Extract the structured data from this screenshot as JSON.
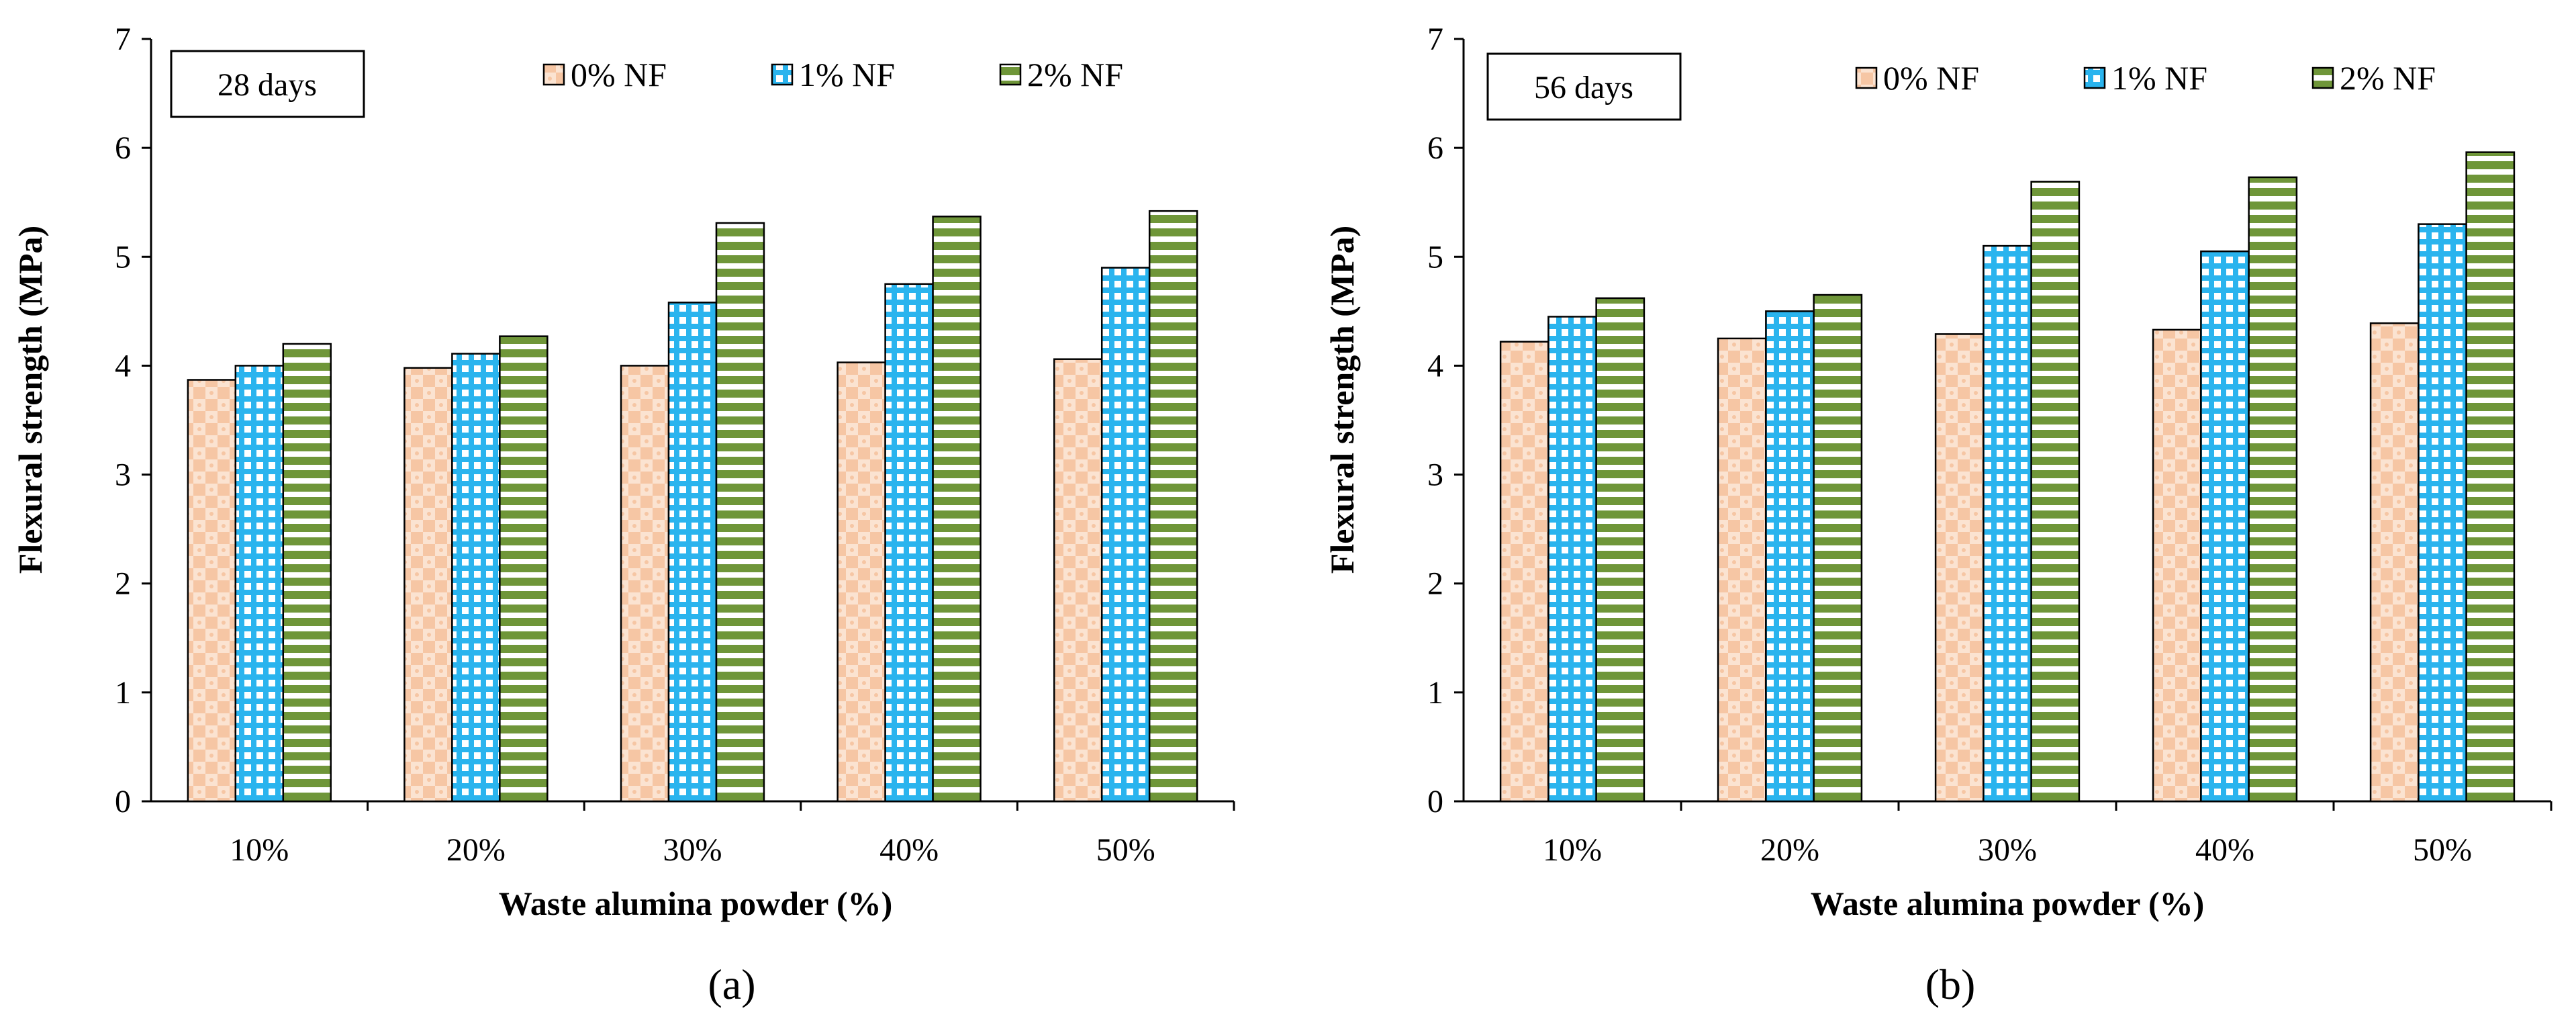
{
  "chart_data": [
    {
      "type": "bar",
      "panel_label": "(a)",
      "badge": "28 days",
      "xlabel": "Waste alumina powder (%)",
      "ylabel": "Flexural strength (MPa)",
      "ylim": [
        0,
        7
      ],
      "yticks": [
        "0",
        "1",
        "2",
        "3",
        "4",
        "5",
        "6",
        "7"
      ],
      "categories": [
        "10%",
        "20%",
        "30%",
        "40%",
        "50%"
      ],
      "legend_position": "top",
      "series": [
        {
          "name": "0% NF",
          "values": [
            3.87,
            3.98,
            4.0,
            4.03,
            4.06
          ]
        },
        {
          "name": "1% NF",
          "values": [
            4.0,
            4.11,
            4.58,
            4.75,
            4.9
          ]
        },
        {
          "name": "2% NF",
          "values": [
            4.2,
            4.27,
            5.31,
            5.37,
            5.42
          ]
        }
      ]
    },
    {
      "type": "bar",
      "panel_label": "(b)",
      "badge": "56 days",
      "xlabel": "Waste alumina powder (%)",
      "ylabel": "Flexural strength (MPa)",
      "ylim": [
        0,
        7
      ],
      "yticks": [
        "0",
        "1",
        "2",
        "3",
        "4",
        "5",
        "6",
        "7"
      ],
      "categories": [
        "10%",
        "20%",
        "30%",
        "40%",
        "50%"
      ],
      "legend_position": "top",
      "series": [
        {
          "name": "0% NF",
          "values": [
            4.22,
            4.25,
            4.29,
            4.33,
            4.39
          ]
        },
        {
          "name": "1% NF",
          "values": [
            4.45,
            4.5,
            5.1,
            5.05,
            5.3
          ]
        },
        {
          "name": "2% NF",
          "values": [
            4.62,
            4.65,
            5.69,
            5.73,
            5.96
          ]
        }
      ]
    }
  ],
  "series_colors": [
    "#f6c6a4",
    "#2ab4ee",
    "#6f9639"
  ]
}
